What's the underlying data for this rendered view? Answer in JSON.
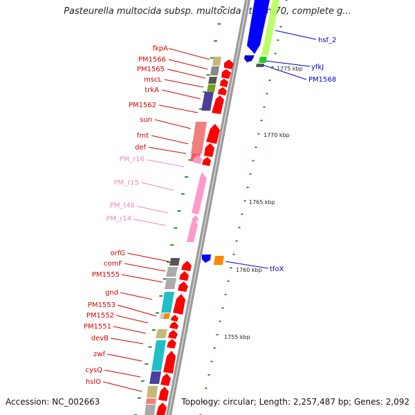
{
  "title": "Pasteurella multocida subsp. multocida str. Pm70, complete g...",
  "footer": {
    "accession": "Accession: NC_002663",
    "topology": "Topology: circular; Length: 2,257,487 bp; Genes: 2,092"
  },
  "colors": {
    "cds_label": "#d40000",
    "rna_label": "#ee88bb",
    "reverse_label": "#0000cc",
    "backbone": "#9a9a9a",
    "tick": "#1f8f1f"
  },
  "kbp_ticks": [
    "1775 kbp",
    "1770 kbp",
    "1765 kbp",
    "1760 kbp",
    "1755 kbp"
  ],
  "left_labels": [
    {
      "name": "fkpA",
      "kind": "cds"
    },
    {
      "name": "PM1566",
      "kind": "cds"
    },
    {
      "name": "PM1565",
      "kind": "cds"
    },
    {
      "name": "mscL",
      "kind": "cds"
    },
    {
      "name": "trkA",
      "kind": "cds"
    },
    {
      "name": "PM1562",
      "kind": "cds"
    },
    {
      "name": "sun",
      "kind": "cds"
    },
    {
      "name": "fmt",
      "kind": "cds"
    },
    {
      "name": "def",
      "kind": "cds"
    },
    {
      "name": "PM_r16",
      "kind": "rna"
    },
    {
      "name": "PM_r15",
      "kind": "rna"
    },
    {
      "name": "PM_t46",
      "kind": "rna"
    },
    {
      "name": "PM_r14",
      "kind": "rna"
    },
    {
      "name": "orfG",
      "kind": "cds"
    },
    {
      "name": "comF",
      "kind": "cds"
    },
    {
      "name": "PM1555",
      "kind": "cds"
    },
    {
      "name": "gnd",
      "kind": "cds"
    },
    {
      "name": "PM1553",
      "kind": "cds"
    },
    {
      "name": "PM1552",
      "kind": "cds"
    },
    {
      "name": "PM1551",
      "kind": "cds"
    },
    {
      "name": "devB",
      "kind": "cds"
    },
    {
      "name": "zwf",
      "kind": "cds"
    },
    {
      "name": "cysQ",
      "kind": "cds"
    },
    {
      "name": "hslO",
      "kind": "cds"
    }
  ],
  "right_labels": [
    {
      "name": "hsf_2"
    },
    {
      "name": "yfkJ"
    },
    {
      "name": "PM1568"
    },
    {
      "name": "tfoX"
    }
  ]
}
